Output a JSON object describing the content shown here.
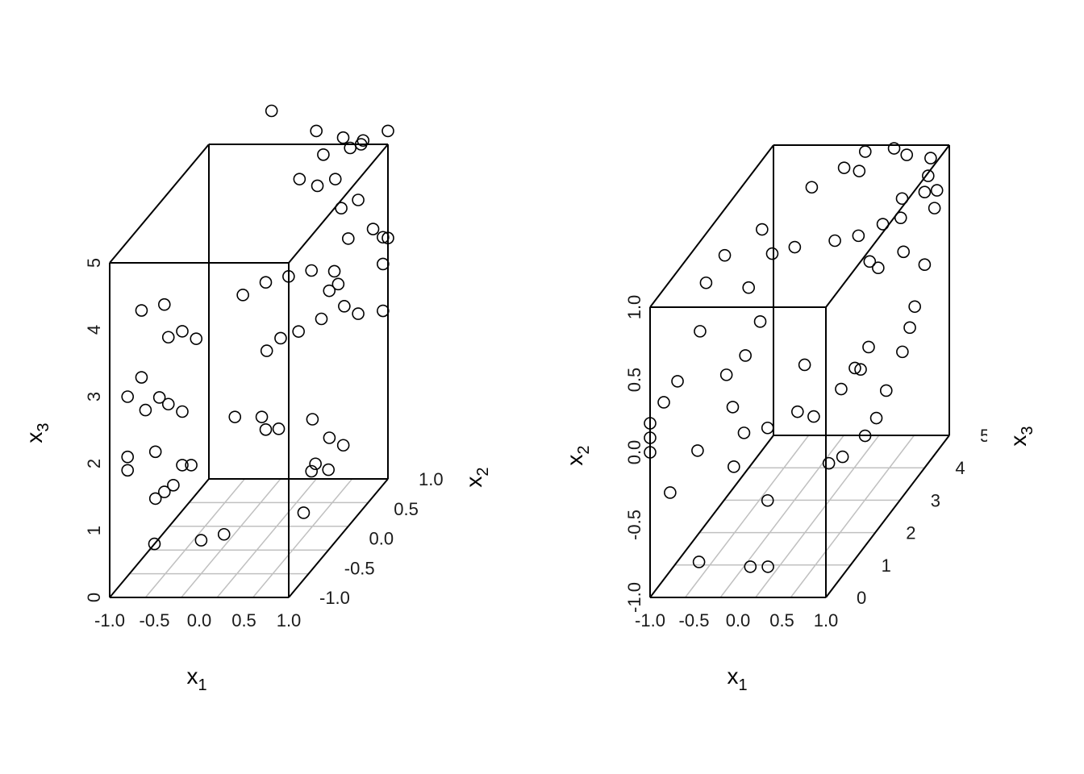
{
  "chart_data": [
    {
      "type": "scatter",
      "title": "",
      "x1label": "x",
      "x1sub": "1",
      "x2label": "x",
      "x2sub": "2",
      "x3label": "x",
      "x3sub": "3",
      "x1_ticks": [
        "-1.0",
        "-0.5",
        "0.0",
        "0.5",
        "1.0"
      ],
      "x2_ticks": [
        "-1.0",
        "-0.5",
        "0.0",
        "0.5",
        "1.0"
      ],
      "x3_ticks": [
        "0",
        "1",
        "2",
        "3",
        "4",
        "5"
      ],
      "x1_range": [
        -1,
        1
      ],
      "x2_range": [
        -1,
        1
      ],
      "x3_range": [
        0,
        5
      ],
      "points": [
        [
          -0.5,
          -1.0,
          0.8
        ],
        [
          -0.2,
          -0.6,
          0.5
        ],
        [
          0.0,
          -0.5,
          0.5
        ],
        [
          0.7,
          0.0,
          1.0
        ],
        [
          -0.6,
          -0.8,
          1.3
        ],
        [
          -0.5,
          -0.8,
          1.4
        ],
        [
          -0.4,
          -0.8,
          1.5
        ],
        [
          -0.3,
          -0.8,
          1.8
        ],
        [
          -0.2,
          -0.8,
          1.8
        ],
        [
          -0.6,
          -0.8,
          2.0
        ],
        [
          0.2,
          -0.1,
          1.9
        ],
        [
          -0.1,
          -0.1,
          1.9
        ],
        [
          0.3,
          -0.2,
          1.8
        ],
        [
          0.5,
          -0.3,
          1.9
        ],
        [
          0.6,
          0.2,
          1.6
        ],
        [
          0.8,
          -0.1,
          1.2
        ],
        [
          0.9,
          0.0,
          1.5
        ],
        [
          1.0,
          0.1,
          1.3
        ],
        [
          1.0,
          -0.2,
          1.2
        ],
        [
          1.0,
          -0.7,
          1.0
        ],
        [
          -0.8,
          -1.0,
          2.1
        ],
        [
          -0.8,
          -1.0,
          1.9
        ],
        [
          -0.6,
          -1.0,
          2.8
        ],
        [
          -0.5,
          -0.9,
          2.9
        ],
        [
          -0.8,
          -1.0,
          3.0
        ],
        [
          -0.7,
          -0.9,
          3.2
        ],
        [
          -0.4,
          -0.9,
          2.8
        ],
        [
          -0.3,
          -0.8,
          2.6
        ],
        [
          0.2,
          0.0,
          2.8
        ],
        [
          0.3,
          0.1,
          2.9
        ],
        [
          0.5,
          0.1,
          3.0
        ],
        [
          0.7,
          0.2,
          3.1
        ],
        [
          0.9,
          0.3,
          3.2
        ],
        [
          1.0,
          0.4,
          3.0
        ],
        [
          0.4,
          0.9,
          2.9
        ],
        [
          0.5,
          0.9,
          3.0
        ],
        [
          1.0,
          0.9,
          2.6
        ],
        [
          1.0,
          0.9,
          3.3
        ],
        [
          1.0,
          1.0,
          3.6
        ],
        [
          1.0,
          0.9,
          3.7
        ],
        [
          -0.4,
          -0.9,
          3.8
        ],
        [
          -0.3,
          -0.8,
          3.8
        ],
        [
          -0.2,
          -0.7,
          3.6
        ],
        [
          -0.5,
          -0.8,
          4.2
        ],
        [
          -0.7,
          -0.9,
          4.2
        ],
        [
          0.3,
          -0.2,
          4.0
        ],
        [
          0.5,
          -0.1,
          4.0
        ],
        [
          0.7,
          0.0,
          4.0
        ],
        [
          0.9,
          0.1,
          3.9
        ],
        [
          0.1,
          -0.3,
          3.9
        ],
        [
          1.0,
          0.2,
          4.3
        ],
        [
          0.7,
          0.6,
          4.4
        ],
        [
          1.0,
          0.7,
          4.0
        ],
        [
          1.0,
          0.4,
          4.7
        ],
        [
          0.4,
          0.3,
          5.1
        ],
        [
          0.6,
          0.3,
          5.0
        ],
        [
          0.8,
          0.3,
          5.1
        ],
        [
          0.5,
          0.6,
          5.2
        ],
        [
          0.8,
          0.6,
          5.3
        ],
        [
          1.0,
          0.5,
          5.5
        ],
        [
          -0.3,
          1.0,
          5.5
        ],
        [
          0.2,
          1.0,
          5.2
        ],
        [
          0.5,
          1.0,
          5.1
        ],
        [
          0.7,
          1.0,
          5.0
        ],
        [
          1.0,
          1.0,
          5.2
        ]
      ]
    },
    {
      "type": "scatter",
      "title": "",
      "x1label": "x",
      "x1sub": "1",
      "x2label": "x",
      "x2sub": "2",
      "x3label": "x",
      "x3sub": "3",
      "x1_ticks": [
        "-1.0",
        "-0.5",
        "0.0",
        "0.5",
        "1.0"
      ],
      "x2_ticks": [
        "-1.0",
        "-0.5",
        "0.0",
        "0.5",
        "1.0"
      ],
      "x3_ticks": [
        "0",
        "1",
        "2",
        "3",
        "4",
        "5"
      ],
      "x1_range": [
        -1,
        1
      ],
      "x2_range": [
        -1,
        1
      ],
      "x3_range": [
        0,
        5
      ],
      "points": [
        [
          -0.5,
          -0.8,
          0.2
        ],
        [
          0.0,
          -0.9,
          0.5
        ],
        [
          0.2,
          -0.9,
          0.5
        ],
        [
          0.0,
          -0.6,
          1.2
        ],
        [
          0.5,
          -0.5,
          1.9
        ],
        [
          0.6,
          -0.5,
          2.1
        ],
        [
          0.8,
          -0.4,
          2.3
        ],
        [
          -0.8,
          -0.3,
          0.1
        ],
        [
          -0.6,
          -0.1,
          0.5
        ],
        [
          -0.3,
          -0.3,
          0.9
        ],
        [
          -0.1,
          0.0,
          0.6
        ],
        [
          0.0,
          -0.1,
          1.2
        ],
        [
          0.2,
          -0.1,
          1.7
        ],
        [
          0.3,
          -0.2,
          2.0
        ],
        [
          0.5,
          -0.1,
          2.4
        ],
        [
          0.6,
          0.0,
          2.6
        ],
        [
          0.9,
          -0.3,
          2.4
        ],
        [
          0.9,
          -0.2,
          2.8
        ],
        [
          0.7,
          0.1,
          2.8
        ],
        [
          1.0,
          0.0,
          3.1
        ],
        [
          1.0,
          0.1,
          3.4
        ],
        [
          1.0,
          0.2,
          3.6
        ],
        [
          1.0,
          0.4,
          4.0
        ],
        [
          0.9,
          0.6,
          3.5
        ],
        [
          1.0,
          0.7,
          4.4
        ],
        [
          1.0,
          0.8,
          4.5
        ],
        [
          0.8,
          0.9,
          3.8
        ],
        [
          -1.0,
          0.0,
          0.0
        ],
        [
          -1.0,
          0.1,
          0.0
        ],
        [
          -1.0,
          0.2,
          0.0
        ],
        [
          -0.9,
          0.3,
          0.2
        ],
        [
          -0.8,
          0.4,
          0.4
        ],
        [
          -0.3,
          0.4,
          0.6
        ],
        [
          -0.2,
          0.2,
          0.5
        ],
        [
          0.0,
          0.6,
          0.3
        ],
        [
          0.0,
          0.7,
          0.9
        ],
        [
          -0.3,
          0.8,
          1.5
        ],
        [
          -0.2,
          0.9,
          2.1
        ],
        [
          0.0,
          0.9,
          2.3
        ],
        [
          0.4,
          0.9,
          2.5
        ],
        [
          0.5,
          0.8,
          3.1
        ],
        [
          0.6,
          0.6,
          3.2
        ],
        [
          0.9,
          0.9,
          4.5
        ],
        [
          0.3,
          0.5,
          4.8
        ],
        [
          0.0,
          0.0,
          2.7
        ],
        [
          0.3,
          -0.3,
          3.9
        ],
        [
          0.5,
          0.4,
          3.9
        ],
        [
          0.7,
          0.7,
          4.1
        ],
        [
          0.6,
          1.0,
          4.7
        ],
        [
          0.4,
          1.0,
          4.9
        ],
        [
          0.1,
          1.0,
          4.8
        ],
        [
          0.0,
          1.0,
          4.3
        ],
        [
          -0.2,
          1.0,
          3.7
        ],
        [
          -0.4,
          1.0,
          2.4
        ],
        [
          -0.6,
          1.0,
          1.6
        ],
        [
          -0.7,
          0.9,
          1.2
        ],
        [
          -0.6,
          0.7,
          0.6
        ],
        [
          0.2,
          1.0,
          4.2
        ],
        [
          0.9,
          1.0,
          4.6
        ],
        [
          1.0,
          0.9,
          4.0
        ]
      ]
    }
  ]
}
